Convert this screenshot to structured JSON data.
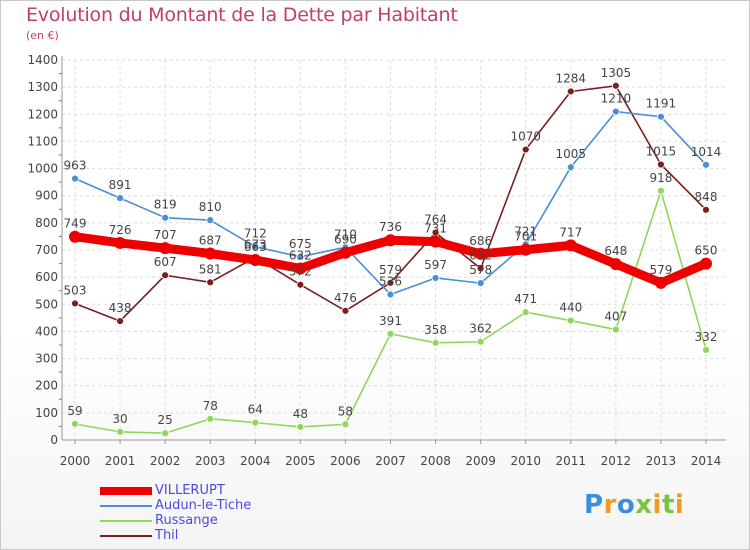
{
  "title": "Evolution du Montant de la Dette par Habitant",
  "subtitle": "(en €)",
  "logo": "Proxiti",
  "chart_data": {
    "type": "line",
    "x": [
      "2000",
      "2001",
      "2002",
      "2003",
      "2004",
      "2005",
      "2006",
      "2007",
      "2008",
      "2009",
      "2010",
      "2011",
      "2012",
      "2013",
      "2014"
    ],
    "ylim": [
      0,
      1400
    ],
    "yticks": [
      0,
      100,
      200,
      300,
      400,
      500,
      600,
      700,
      800,
      900,
      1000,
      1100,
      1200,
      1300,
      1400
    ],
    "grid": true,
    "legend_position": "bottom-left",
    "series": [
      {
        "name": "VILLERUPT",
        "color": "#ee0000",
        "values": [
          749,
          726,
          707,
          687,
          663,
          632,
          690,
          736,
          731,
          686,
          701,
          717,
          648,
          579,
          650
        ]
      },
      {
        "name": "Audun-le-Tiche",
        "color": "#4a8ed4",
        "values": [
          963,
          891,
          819,
          810,
          712,
          675,
          710,
          536,
          597,
          578,
          721,
          1005,
          1210,
          1191,
          1014
        ]
      },
      {
        "name": "Russange",
        "color": "#8fd65a",
        "values": [
          59,
          30,
          25,
          78,
          64,
          48,
          58,
          391,
          358,
          362,
          471,
          440,
          407,
          918,
          332
        ]
      },
      {
        "name": "Thil",
        "color": "#7a1e1e",
        "values": [
          503,
          438,
          607,
          581,
          673,
          572,
          476,
          579,
          764,
          632,
          1070,
          1284,
          1305,
          1015,
          848
        ]
      }
    ]
  }
}
